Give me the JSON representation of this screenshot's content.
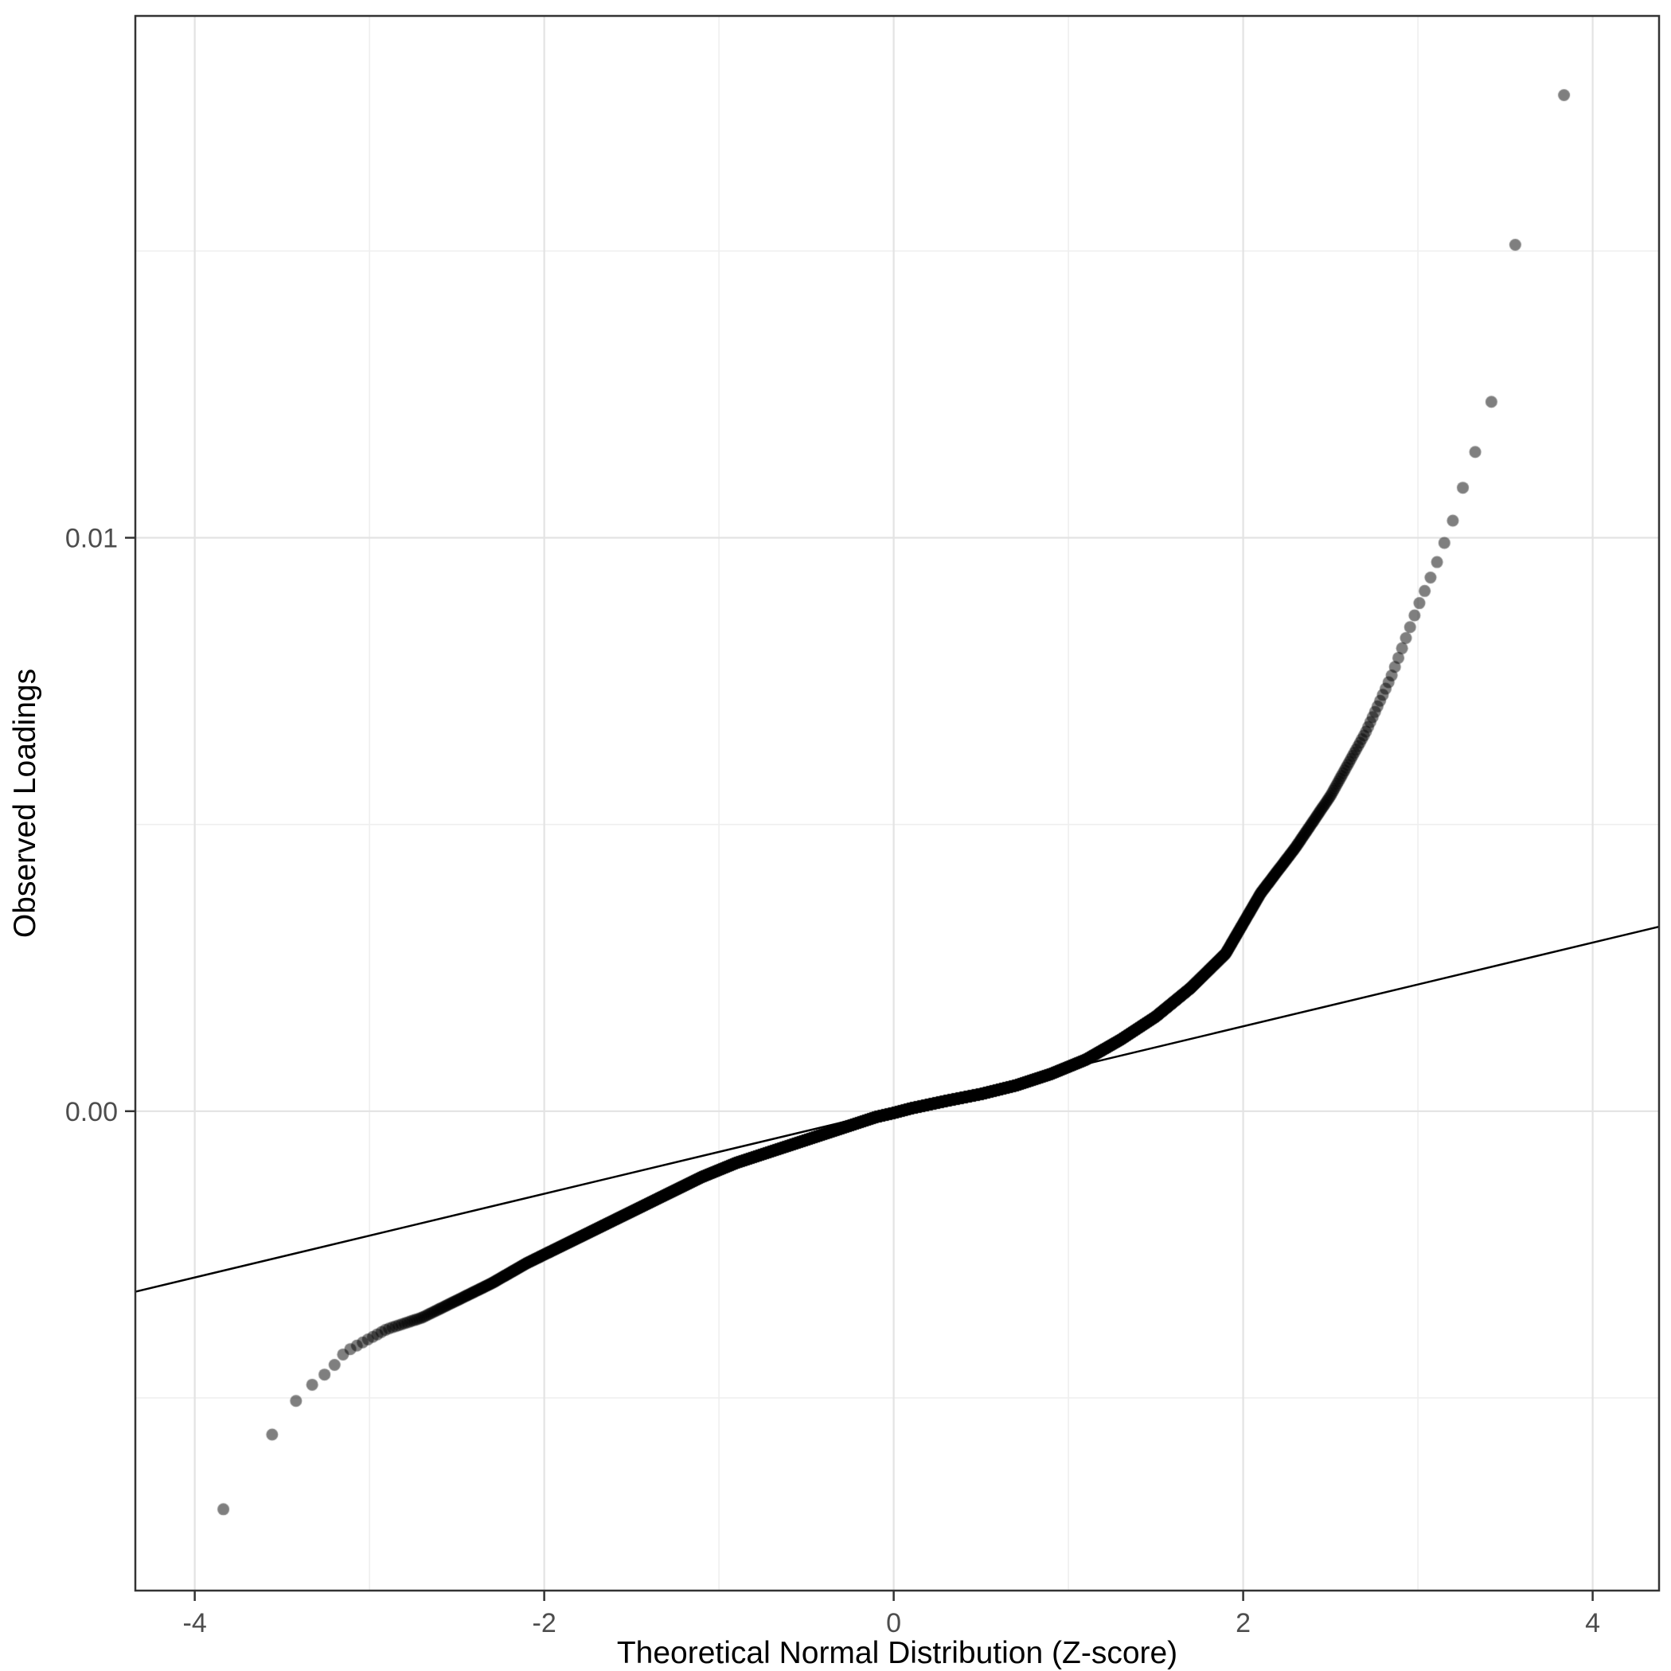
{
  "chart_data": {
    "type": "scatter",
    "subtype": "qq-plot",
    "title": "",
    "xlabel": "Theoretical Normal Distribution (Z-score)",
    "ylabel": "Observed Loadings",
    "xlim": [
      -4.34,
      4.38
    ],
    "ylim": [
      -0.00836,
      0.0191
    ],
    "x_major_ticks": [
      -4,
      -2,
      0,
      2,
      4
    ],
    "x_tick_labels": [
      "-4",
      "-2",
      "0",
      "2",
      "4"
    ],
    "x_minor_ticks": [
      -3,
      -1,
      1,
      3
    ],
    "y_major_ticks": [
      0,
      0.01
    ],
    "y_tick_labels": [
      "0.00",
      "0.01"
    ],
    "y_minor_ticks": [
      -0.005,
      0.005,
      0.015
    ],
    "grid": true,
    "legend": false,
    "reference_line": {
      "slope": 0.00073,
      "intercept": 2e-05
    },
    "n_points": 8000,
    "points_model": "z_i = qnorm((i-0.5)/n); y_i = linear interpolation of quantile_curve_anchors at z_i",
    "quantile_curve_anchors": [
      [
        -4.0,
        -0.0072
      ],
      [
        -3.85,
        -0.007
      ],
      [
        -3.66,
        -0.0062
      ],
      [
        -3.55,
        -0.0056
      ],
      [
        -3.46,
        -0.0052
      ],
      [
        -3.38,
        -0.0049
      ],
      [
        -3.3,
        -0.0047
      ],
      [
        -3.22,
        -0.0045
      ],
      [
        -3.14,
        -0.0042
      ],
      [
        -3.05,
        -0.00405
      ],
      [
        -2.9,
        -0.0038
      ],
      [
        -2.7,
        -0.0036
      ],
      [
        -2.5,
        -0.0033
      ],
      [
        -2.3,
        -0.003
      ],
      [
        -2.1,
        -0.00265
      ],
      [
        -1.9,
        -0.00235
      ],
      [
        -1.7,
        -0.00205
      ],
      [
        -1.5,
        -0.00175
      ],
      [
        -1.3,
        -0.00145
      ],
      [
        -1.1,
        -0.00115
      ],
      [
        -0.9,
        -0.0009
      ],
      [
        -0.7,
        -0.0007
      ],
      [
        -0.5,
        -0.0005
      ],
      [
        -0.3,
        -0.0003
      ],
      [
        -0.1,
        -0.0001
      ],
      [
        0.0,
        -3e-05
      ],
      [
        0.1,
        5e-05
      ],
      [
        0.3,
        0.00018
      ],
      [
        0.5,
        0.0003
      ],
      [
        0.7,
        0.00045
      ],
      [
        0.9,
        0.00065
      ],
      [
        1.1,
        0.0009
      ],
      [
        1.3,
        0.00125
      ],
      [
        1.5,
        0.00165
      ],
      [
        1.7,
        0.00215
      ],
      [
        1.9,
        0.00275
      ],
      [
        2.1,
        0.0038
      ],
      [
        2.3,
        0.0046
      ],
      [
        2.5,
        0.0055
      ],
      [
        2.7,
        0.0066
      ],
      [
        2.85,
        0.0076
      ],
      [
        3.0,
        0.0088
      ],
      [
        3.1,
        0.0095
      ],
      [
        3.2,
        0.0103
      ],
      [
        3.3,
        0.0113
      ],
      [
        3.4,
        0.012
      ],
      [
        3.45,
        0.0129
      ],
      [
        3.55,
        0.015
      ],
      [
        3.66,
        0.0167
      ],
      [
        3.85,
        0.0178
      ],
      [
        4.0,
        0.0182
      ]
    ],
    "style": {
      "point_color": "#000000",
      "point_opacity": 0.5,
      "point_radius": 7.5,
      "reference_line_color": "#000000",
      "grid_major_color": "#e3e3e3",
      "grid_minor_color": "#efefef",
      "panel_border_color": "#333333",
      "tick_mark_color": "#333333",
      "tick_label_color": "#4d4d4d",
      "axis_title_color": "#000000",
      "panel_background": "#ffffff",
      "page_background": "#ffffff"
    }
  }
}
